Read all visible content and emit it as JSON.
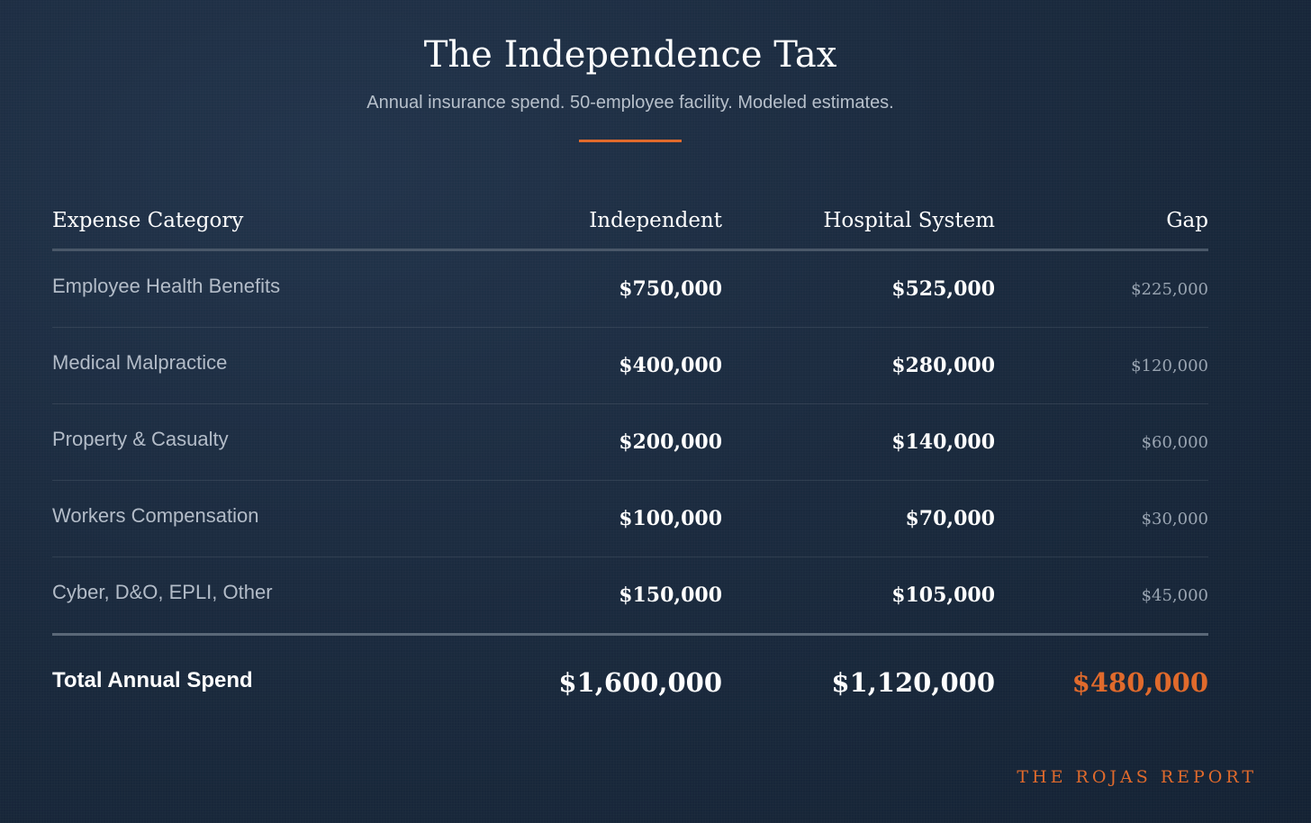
{
  "header": {
    "title": "The Independence Tax",
    "subtitle": "Annual insurance spend. 50-employee facility. Modeled estimates."
  },
  "table": {
    "columns": [
      "Expense Category",
      "Independent",
      "Hospital System",
      "Gap"
    ],
    "rows": [
      {
        "category": "Employee Health Benefits",
        "independent": "$750,000",
        "hospital": "$525,000",
        "gap": "$225,000"
      },
      {
        "category": "Medical Malpractice",
        "independent": "$400,000",
        "hospital": "$280,000",
        "gap": "$120,000"
      },
      {
        "category": "Property & Casualty",
        "independent": "$200,000",
        "hospital": "$140,000",
        "gap": "$60,000"
      },
      {
        "category": "Workers Compensation",
        "independent": "$100,000",
        "hospital": "$70,000",
        "gap": "$30,000"
      },
      {
        "category": "Cyber, D&O, EPLI, Other",
        "independent": "$150,000",
        "hospital": "$105,000",
        "gap": "$45,000"
      }
    ],
    "total": {
      "label": "Total Annual Spend",
      "independent": "$1,600,000",
      "hospital": "$1,120,000",
      "gap": "$480,000"
    }
  },
  "footer": {
    "brand": "THE ROJAS REPORT"
  },
  "colors": {
    "accent": "#e06a2c",
    "background": "#1b2b3f"
  }
}
